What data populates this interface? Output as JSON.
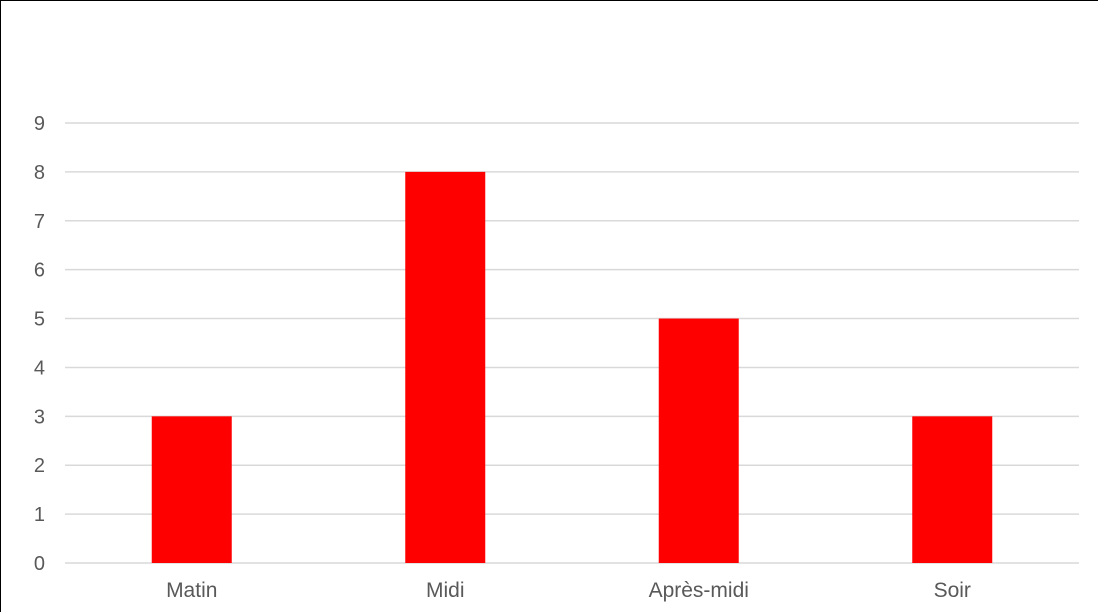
{
  "chart_data": {
    "type": "bar",
    "categories": [
      "Matin",
      "Midi",
      "Après-midi",
      "Soir"
    ],
    "values": [
      3,
      8,
      5,
      3
    ],
    "title": "",
    "xlabel": "",
    "ylabel": "",
    "ylim": [
      0,
      9
    ],
    "yticks": [
      "0",
      "1",
      "2",
      "3",
      "4",
      "5",
      "6",
      "7",
      "8",
      "9"
    ],
    "grid": true,
    "bar_color": "#ff0000",
    "grid_color": "#d9d9d9",
    "label_color": "#595959"
  }
}
